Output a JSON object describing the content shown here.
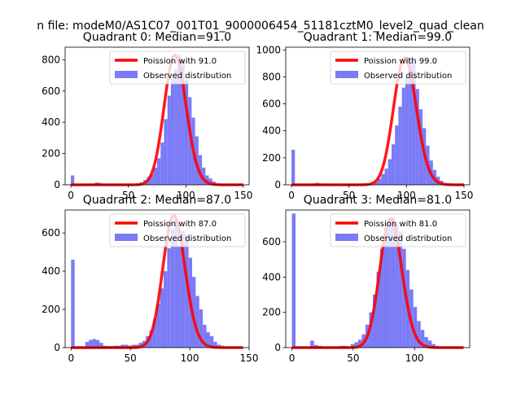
{
  "figure": {
    "suptitle": "n file: modeM0/AS1C07_001T01_9000006454_51181cztM0_level2_quad_clean"
  },
  "chart_data": [
    {
      "type": "bar",
      "title": "Quadrant 0: Median=91.0",
      "xlim": [
        -5,
        155
      ],
      "ylim": [
        0,
        880
      ],
      "xticks": [
        0,
        50,
        100,
        150
      ],
      "yticks": [
        0,
        200,
        400,
        600,
        800
      ],
      "bin_width": 3,
      "grid": false,
      "legend_position": "upper right",
      "legend": [
        "Poission with 91.0",
        "Observed distribution"
      ],
      "colors": {
        "histogram": "#7b7bf7",
        "poisson": "#ff0000"
      },
      "histogram": {
        "name": "Observed distribution",
        "bins": [
          [
            0,
            60
          ],
          [
            21,
            15
          ],
          [
            24,
            12
          ],
          [
            57,
            5
          ],
          [
            60,
            15
          ],
          [
            63,
            30
          ],
          [
            66,
            50
          ],
          [
            69,
            70
          ],
          [
            72,
            110
          ],
          [
            75,
            170
          ],
          [
            78,
            270
          ],
          [
            81,
            420
          ],
          [
            84,
            570
          ],
          [
            87,
            680
          ],
          [
            90,
            740
          ],
          [
            93,
            830
          ],
          [
            96,
            800
          ],
          [
            99,
            670
          ],
          [
            102,
            560
          ],
          [
            105,
            430
          ],
          [
            108,
            310
          ],
          [
            111,
            190
          ],
          [
            114,
            110
          ],
          [
            117,
            60
          ],
          [
            120,
            40
          ],
          [
            123,
            20
          ],
          [
            126,
            8
          ],
          [
            129,
            5
          ]
        ]
      },
      "poisson": {
        "name": "Poission with 91.0",
        "mean": 91.0,
        "scale": 830,
        "x_range": [
          0,
          150
        ]
      }
    },
    {
      "type": "bar",
      "title": "Quadrant 1: Median=99.0",
      "xlim": [
        -5,
        155
      ],
      "ylim": [
        0,
        1020
      ],
      "xticks": [
        0,
        50,
        100,
        150
      ],
      "yticks": [
        0,
        200,
        400,
        600,
        800,
        1000
      ],
      "bin_width": 3,
      "grid": false,
      "legend_position": "upper right",
      "legend": [
        "Poission with 99.0",
        "Observed distribution"
      ],
      "colors": {
        "histogram": "#7b7bf7",
        "poisson": "#ff0000"
      },
      "histogram": {
        "name": "Observed distribution",
        "bins": [
          [
            0,
            260
          ],
          [
            18,
            10
          ],
          [
            21,
            15
          ],
          [
            24,
            10
          ],
          [
            66,
            5
          ],
          [
            69,
            10
          ],
          [
            72,
            25
          ],
          [
            75,
            45
          ],
          [
            78,
            80
          ],
          [
            81,
            120
          ],
          [
            84,
            190
          ],
          [
            87,
            300
          ],
          [
            90,
            440
          ],
          [
            93,
            580
          ],
          [
            96,
            720
          ],
          [
            99,
            800
          ],
          [
            102,
            950
          ],
          [
            105,
            920
          ],
          [
            108,
            710
          ],
          [
            111,
            560
          ],
          [
            114,
            420
          ],
          [
            117,
            290
          ],
          [
            120,
            180
          ],
          [
            123,
            110
          ],
          [
            126,
            60
          ],
          [
            129,
            30
          ],
          [
            132,
            15
          ],
          [
            135,
            8
          ]
        ]
      },
      "poisson": {
        "name": "Poission with 99.0",
        "mean": 99.0,
        "scale": 940,
        "x_range": [
          0,
          150
        ]
      }
    },
    {
      "type": "bar",
      "title": "Quadrant 2: Median=87.0",
      "xlim": [
        -5,
        150
      ],
      "ylim": [
        0,
        720
      ],
      "xticks": [
        0,
        50,
        100,
        150
      ],
      "yticks": [
        0,
        200,
        400,
        600
      ],
      "bin_width": 3,
      "grid": false,
      "legend_position": "upper right",
      "legend": [
        "Poission with 87.0",
        "Observed distribution"
      ],
      "colors": {
        "histogram": "#7b7bf7",
        "poisson": "#ff0000"
      },
      "histogram": {
        "name": "Observed distribution",
        "bins": [
          [
            0,
            460
          ],
          [
            12,
            30
          ],
          [
            15,
            40
          ],
          [
            18,
            45
          ],
          [
            21,
            40
          ],
          [
            24,
            25
          ],
          [
            27,
            10
          ],
          [
            30,
            8
          ],
          [
            33,
            8
          ],
          [
            36,
            10
          ],
          [
            39,
            10
          ],
          [
            42,
            15
          ],
          [
            45,
            15
          ],
          [
            48,
            10
          ],
          [
            51,
            15
          ],
          [
            54,
            15
          ],
          [
            57,
            25
          ],
          [
            60,
            35
          ],
          [
            63,
            60
          ],
          [
            66,
            90
          ],
          [
            69,
            150
          ],
          [
            72,
            230
          ],
          [
            75,
            310
          ],
          [
            78,
            400
          ],
          [
            81,
            520
          ],
          [
            84,
            620
          ],
          [
            87,
            670
          ],
          [
            90,
            530
          ],
          [
            93,
            610
          ],
          [
            96,
            590
          ],
          [
            99,
            470
          ],
          [
            102,
            370
          ],
          [
            105,
            270
          ],
          [
            108,
            200
          ],
          [
            111,
            120
          ],
          [
            114,
            80
          ],
          [
            117,
            60
          ],
          [
            120,
            30
          ],
          [
            123,
            15
          ],
          [
            126,
            10
          ]
        ]
      },
      "poisson": {
        "name": "Poission with 87.0",
        "mean": 87.0,
        "scale": 690,
        "x_range": [
          0,
          145
        ]
      }
    },
    {
      "type": "bar",
      "title": "Quadrant 3: Median=81.0",
      "xlim": [
        -5,
        145
      ],
      "ylim": [
        0,
        780
      ],
      "xticks": [
        0,
        50,
        100
      ],
      "yticks": [
        0,
        200,
        400,
        600
      ],
      "bin_width": 3,
      "grid": false,
      "legend_position": "upper right",
      "legend": [
        "Poission with 81.0",
        "Observed distribution"
      ],
      "colors": {
        "histogram": "#7b7bf7",
        "poisson": "#ff0000"
      },
      "histogram": {
        "name": "Observed distribution",
        "bins": [
          [
            0,
            760
          ],
          [
            15,
            40
          ],
          [
            18,
            15
          ],
          [
            21,
            10
          ],
          [
            39,
            10
          ],
          [
            42,
            10
          ],
          [
            48,
            20
          ],
          [
            51,
            30
          ],
          [
            54,
            45
          ],
          [
            57,
            75
          ],
          [
            60,
            130
          ],
          [
            63,
            200
          ],
          [
            66,
            300
          ],
          [
            69,
            430
          ],
          [
            72,
            560
          ],
          [
            75,
            680
          ],
          [
            78,
            720
          ],
          [
            81,
            740
          ],
          [
            84,
            700
          ],
          [
            87,
            660
          ],
          [
            90,
            560
          ],
          [
            93,
            440
          ],
          [
            96,
            330
          ],
          [
            99,
            230
          ],
          [
            102,
            150
          ],
          [
            105,
            100
          ],
          [
            108,
            60
          ],
          [
            111,
            40
          ],
          [
            114,
            20
          ],
          [
            117,
            10
          ]
        ]
      },
      "poisson": {
        "name": "Poission with 81.0",
        "mean": 81.0,
        "scale": 730,
        "x_range": [
          0,
          140
        ]
      }
    }
  ]
}
